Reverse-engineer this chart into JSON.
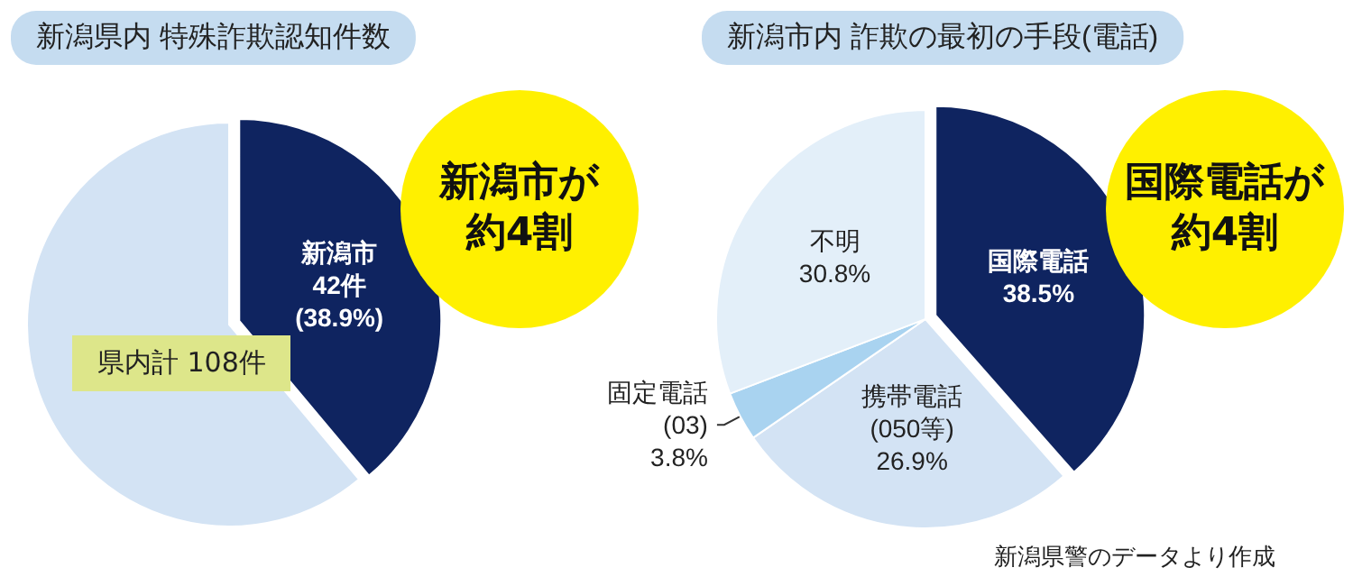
{
  "chart_data": [
    {
      "type": "pie",
      "title": "新潟県内 特殊詐欺認知件数",
      "categories": [
        "新潟市",
        null
      ],
      "values": [
        38.9,
        61.1
      ],
      "colors": [
        "#0f2460",
        "#d3e3f4"
      ],
      "value_labels": [
        "42件\n(38.9%)",
        null
      ],
      "annotations": [
        "新潟市が約4割",
        "県内計 108件"
      ]
    },
    {
      "type": "pie",
      "title": "新潟市内 詐欺の最初の手段(電話)",
      "categories": [
        "国際電話",
        "携帯電話\n(050等)",
        "固定電話\n(03)",
        "不明"
      ],
      "values": [
        38.5,
        26.9,
        3.8,
        30.8
      ],
      "colors": [
        "#0f2460",
        "#d3e3f4",
        "#a9d3f0",
        "#e3eff9"
      ],
      "value_labels": [
        "38.5%",
        "26.9%",
        "3.8%",
        "30.8%"
      ],
      "annotations": [
        "国際電話が約4割",
        "新潟県警のデータより作成"
      ]
    }
  ]
}
